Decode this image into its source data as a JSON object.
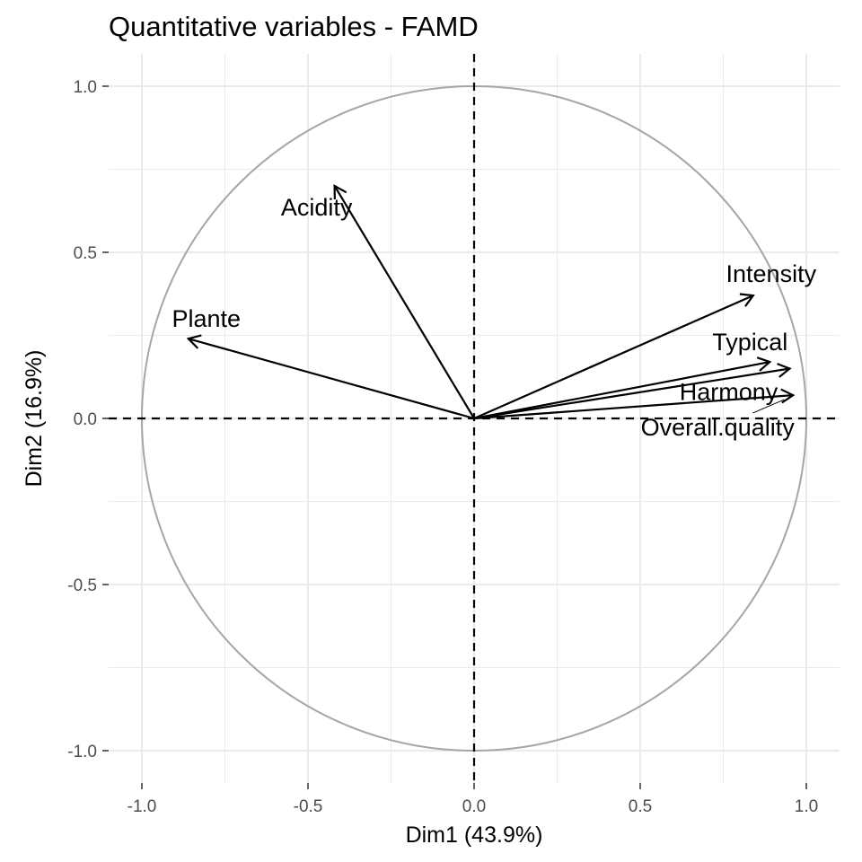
{
  "chart_data": {
    "type": "scatter",
    "title": "Quantitative variables - FAMD",
    "xlabel": "Dim1 (43.9%)",
    "ylabel": "Dim2 (16.9%)",
    "xlim": [
      -1.05,
      1.1
    ],
    "ylim": [
      -1.1,
      1.1
    ],
    "x_ticks": [
      -1.0,
      -0.5,
      0.0,
      0.5,
      1.0
    ],
    "y_ticks": [
      -1.0,
      -0.5,
      0.0,
      0.5,
      1.0
    ],
    "x_tick_labels": [
      "-1.0",
      "-0.5",
      "0.0",
      "0.5",
      "1.0"
    ],
    "y_tick_labels": [
      "-1.0",
      "-0.5",
      "0.0",
      "0.5",
      "1.0"
    ],
    "grid": true,
    "unit_circle": true,
    "reference_lines": "dashed at x=0 and y=0",
    "variables": [
      {
        "name": "Acidity",
        "x": -0.42,
        "y": 0.7
      },
      {
        "name": "Plante",
        "x": -0.86,
        "y": 0.24
      },
      {
        "name": "Intensity",
        "x": 0.84,
        "y": 0.37
      },
      {
        "name": "Typical",
        "x": 0.89,
        "y": 0.17
      },
      {
        "name": "Harmony",
        "x": 0.95,
        "y": 0.15
      },
      {
        "name": "Overall.quality",
        "x": 0.96,
        "y": 0.07
      }
    ],
    "colors": {
      "arrow": "#000000",
      "circle": "#a6a6a6",
      "grid": "#ebebeb",
      "ticks": "#4d4d4d"
    }
  }
}
